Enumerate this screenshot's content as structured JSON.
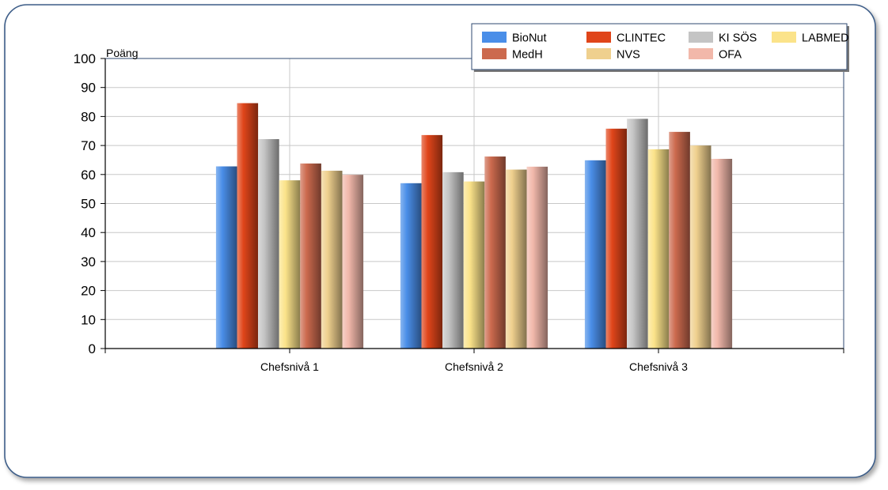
{
  "chart_data": {
    "type": "bar",
    "title": "",
    "xlabel": "",
    "ylabel": "Poäng",
    "ylim": [
      0,
      100
    ],
    "yticks": [
      0,
      10,
      20,
      30,
      40,
      50,
      60,
      70,
      80,
      90,
      100
    ],
    "grid": true,
    "legend_position": "top-right",
    "categories": [
      "Chefsnivå 1",
      "Chefsnivå 2",
      "Chefsnivå 3"
    ],
    "series": [
      {
        "name": "BioNut",
        "color": "#4a8ee8",
        "values": [
          62.8,
          57.0,
          64.9
        ]
      },
      {
        "name": "CLINTEC",
        "color": "#e0451a",
        "values": [
          84.6,
          73.6,
          75.8
        ]
      },
      {
        "name": "KI SÖS",
        "color": "#c4c4c4",
        "values": [
          72.2,
          60.8,
          79.2
        ]
      },
      {
        "name": "LABMED",
        "color": "#fbe38a",
        "values": [
          58.0,
          57.6,
          68.7
        ]
      },
      {
        "name": "MedH",
        "color": "#cc6a4e",
        "values": [
          63.8,
          66.2,
          74.7
        ]
      },
      {
        "name": "NVS",
        "color": "#efd08e",
        "values": [
          61.3,
          61.7,
          70.0
        ]
      },
      {
        "name": "OFA",
        "color": "#f2b8aa",
        "values": [
          59.9,
          62.7,
          65.4
        ]
      }
    ]
  }
}
